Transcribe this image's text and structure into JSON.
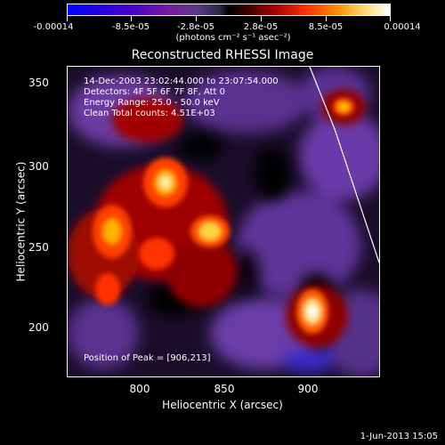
{
  "colorbar": {
    "tick_labels": [
      "-0.00014",
      "-8.5e-05",
      "-2.8e-05",
      "2.8e-05",
      "8.5e-05",
      "0.00014"
    ],
    "units": "(photons cm⁻² s⁻¹ asec⁻²)",
    "colors": [
      "#0000ff",
      "#7a1aa0",
      "#000000",
      "#a00000",
      "#ff9000",
      "#ffffff"
    ]
  },
  "plot": {
    "title": "Reconstructed RHESSI Image",
    "info_lines": [
      "14-Dec-2003 23:02:44.000 to 23:07:54.000",
      "Detectors: 4F 5F 6F 7F 8F, Att 0",
      "Energy Range: 25.0 - 50.0 keV",
      "Clean     Total counts: 4.51E+03"
    ],
    "peak_label": "Position of Peak = [906,213]",
    "xlabel": "Heliocentric X (arcsec)",
    "ylabel": "Heliocentric Y (arcsec)",
    "x_ticks": [
      "800",
      "850",
      "900"
    ],
    "y_ticks": [
      "200",
      "250",
      "300",
      "350"
    ]
  },
  "footer": {
    "date": "1-Jun-2013 15:05"
  }
}
